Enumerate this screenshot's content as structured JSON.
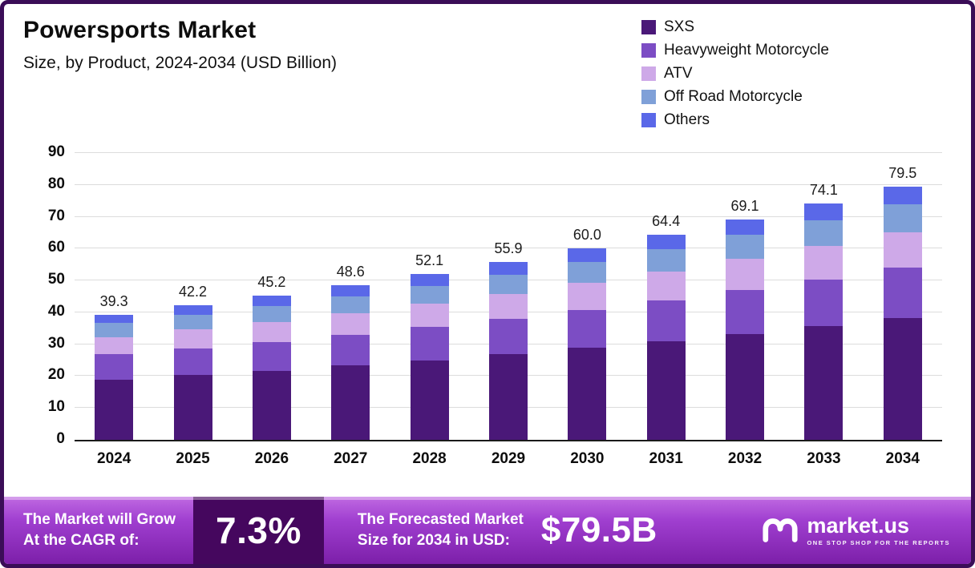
{
  "title": "Powersports Market",
  "subtitle": "Size, by Product, 2024-2034 (USD Billion)",
  "legend": [
    {
      "label": "SXS",
      "color": "#4a1878"
    },
    {
      "label": "Heavyweight Motorcycle",
      "color": "#7c4dc4"
    },
    {
      "label": "ATV",
      "color": "#cea9e8"
    },
    {
      "label": "Off Road Motorcycle",
      "color": "#7fa0d8"
    },
    {
      "label": "Others",
      "color": "#5a68e8"
    }
  ],
  "chart_data": {
    "type": "bar",
    "stacked": true,
    "title": "Powersports Market",
    "subtitle": "Size, by Product, 2024-2034 (USD Billion)",
    "categories": [
      "2024",
      "2025",
      "2026",
      "2027",
      "2028",
      "2029",
      "2030",
      "2031",
      "2032",
      "2033",
      "2034"
    ],
    "totals": [
      39.3,
      42.2,
      45.2,
      48.6,
      52.1,
      55.9,
      60.0,
      64.4,
      69.1,
      74.1,
      79.5
    ],
    "series": [
      {
        "name": "SXS",
        "color": "#4a1878",
        "values": [
          18.9,
          20.3,
          21.7,
          23.3,
          25.0,
          26.8,
          28.8,
          30.9,
          33.2,
          35.6,
          38.2
        ]
      },
      {
        "name": "Heavyweight Motorcycle",
        "color": "#7c4dc4",
        "values": [
          7.9,
          8.4,
          9.0,
          9.7,
          10.4,
          11.2,
          12.0,
          12.9,
          13.8,
          14.8,
          15.9
        ]
      },
      {
        "name": "ATV",
        "color": "#cea9e8",
        "values": [
          5.5,
          5.9,
          6.3,
          6.8,
          7.3,
          7.8,
          8.4,
          9.0,
          9.7,
          10.4,
          11.1
        ]
      },
      {
        "name": "Off Road Motorcycle",
        "color": "#7fa0d8",
        "values": [
          4.3,
          4.6,
          5.0,
          5.3,
          5.7,
          6.1,
          6.6,
          7.1,
          7.6,
          8.1,
          8.7
        ]
      },
      {
        "name": "Others",
        "color": "#5a68e8",
        "values": [
          2.7,
          3.0,
          3.2,
          3.5,
          3.7,
          4.0,
          4.2,
          4.5,
          4.8,
          5.2,
          5.6
        ]
      }
    ],
    "xlabel": "",
    "ylabel": "",
    "ylim": [
      0,
      90
    ],
    "ytick_step": 10,
    "grid": true,
    "legend_position": "top-right"
  },
  "banner": {
    "cagr_line1": "The Market will Grow",
    "cagr_line2": "At the CAGR of:",
    "cagr_value": "7.3%",
    "forecast_line1": "The Forecasted Market",
    "forecast_line2": "Size for 2034 in USD:",
    "forecast_value": "$79.5B",
    "brand": "market.us",
    "brand_tagline": "ONE STOP SHOP FOR THE REPORTS"
  },
  "colors": {
    "frame_border": "#3b0d57",
    "banner_gradient_top": "#c06ae2",
    "banner_gradient_bottom": "#7c1fa9",
    "cagr_box": "#45075e",
    "grid_line": "#dcdcdc",
    "background": "#ffffff"
  }
}
